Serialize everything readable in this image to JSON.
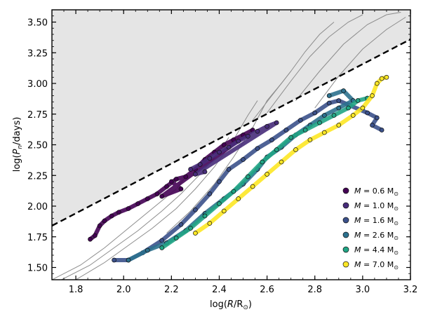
{
  "chart_data": {
    "type": "scatter",
    "title": "",
    "xlabel_parts": [
      "log(",
      "R",
      "/R",
      "⊙",
      ")"
    ],
    "ylabel_parts": [
      "log(",
      "P",
      "n",
      "/days)"
    ],
    "xlim": [
      1.7,
      3.2
    ],
    "ylim": [
      1.4,
      3.6
    ],
    "x_ticks": [
      1.8,
      2.0,
      2.2,
      2.4,
      2.6,
      2.8,
      3.0,
      3.2
    ],
    "x_tick_labels": [
      "1.8",
      "2.0",
      "2.2",
      "2.4",
      "2.6",
      "2.8",
      "3.0",
      "3.2"
    ],
    "y_ticks": [
      1.5,
      1.75,
      2.0,
      2.25,
      2.5,
      2.75,
      3.0,
      3.25,
      3.5
    ],
    "y_tick_labels": [
      "1.50",
      "1.75",
      "2.00",
      "2.25",
      "2.50",
      "2.75",
      "3.00",
      "3.25",
      "3.50"
    ],
    "grid": false,
    "legend_position": "lower-right",
    "boundary_line": {
      "points": [
        [
          1.7,
          1.84
        ],
        [
          3.2,
          3.36
        ]
      ],
      "style": "dashed",
      "color": "#000000"
    },
    "shaded_region": {
      "color": "#e5e5e5",
      "location": "above boundary line"
    },
    "series": [
      {
        "name": "M = 0.6 M⊙",
        "label_prefix": "M",
        "label_value": " = 0.6 M",
        "label_sub": "⊙",
        "color": "#440154",
        "points": [
          [
            1.86,
            1.73
          ],
          [
            1.88,
            1.76
          ],
          [
            1.9,
            1.84
          ],
          [
            1.92,
            1.88
          ],
          [
            1.95,
            1.92
          ],
          [
            1.98,
            1.95
          ],
          [
            2.02,
            1.98
          ],
          [
            2.06,
            2.02
          ],
          [
            2.1,
            2.06
          ],
          [
            2.14,
            2.1
          ],
          [
            2.18,
            2.16
          ],
          [
            2.22,
            2.22
          ],
          [
            2.26,
            2.24
          ],
          [
            2.3,
            2.3
          ],
          [
            2.34,
            2.38
          ],
          [
            2.38,
            2.44
          ],
          [
            2.42,
            2.5
          ],
          [
            2.46,
            2.54
          ],
          [
            2.5,
            2.58
          ],
          [
            2.54,
            2.62
          ],
          [
            2.16,
            2.08
          ],
          [
            2.24,
            2.14
          ],
          [
            2.2,
            2.2
          ]
        ]
      },
      {
        "name": "M = 1.0 M⊙",
        "label_prefix": "M",
        "label_value": " = 1.0 M",
        "label_sub": "⊙",
        "color": "#472c7a",
        "points": [
          [
            2.28,
            2.3
          ],
          [
            2.32,
            2.34
          ],
          [
            2.36,
            2.39
          ],
          [
            2.4,
            2.44
          ],
          [
            2.44,
            2.48
          ],
          [
            2.48,
            2.53
          ],
          [
            2.52,
            2.57
          ],
          [
            2.56,
            2.61
          ],
          [
            2.6,
            2.65
          ],
          [
            2.64,
            2.68
          ],
          [
            2.3,
            2.26
          ],
          [
            2.34,
            2.28
          ]
        ]
      },
      {
        "name": "M = 1.6 M⊙",
        "label_prefix": "M",
        "label_value": " = 1.6 M",
        "label_sub": "⊙",
        "color": "#3b518b",
        "points": [
          [
            1.96,
            1.56
          ],
          [
            2.02,
            1.56
          ],
          [
            2.08,
            1.62
          ],
          [
            2.16,
            1.72
          ],
          [
            2.24,
            1.85
          ],
          [
            2.3,
            1.97
          ],
          [
            2.36,
            2.1
          ],
          [
            2.4,
            2.2
          ],
          [
            2.44,
            2.3
          ],
          [
            2.5,
            2.38
          ],
          [
            2.56,
            2.47
          ],
          [
            2.62,
            2.54
          ],
          [
            2.68,
            2.62
          ],
          [
            2.74,
            2.7
          ],
          [
            2.8,
            2.76
          ],
          [
            2.86,
            2.84
          ],
          [
            2.9,
            2.86
          ],
          [
            3.02,
            2.76
          ],
          [
            3.06,
            2.72
          ],
          [
            3.04,
            2.66
          ],
          [
            3.08,
            2.62
          ]
        ]
      },
      {
        "name": "M = 2.6 M⊙",
        "label_prefix": "M",
        "label_value": " = 2.6 M",
        "label_sub": "⊙",
        "color": "#2c718e",
        "points": [
          [
            2.02,
            1.56
          ],
          [
            2.1,
            1.64
          ],
          [
            2.18,
            1.7
          ],
          [
            2.26,
            1.8
          ],
          [
            2.34,
            1.94
          ],
          [
            2.42,
            2.06
          ],
          [
            2.5,
            2.18
          ],
          [
            2.56,
            2.3
          ],
          [
            2.6,
            2.4
          ],
          [
            2.66,
            2.48
          ],
          [
            2.72,
            2.58
          ],
          [
            2.78,
            2.66
          ],
          [
            2.84,
            2.74
          ],
          [
            2.9,
            2.8
          ],
          [
            2.96,
            2.86
          ],
          [
            2.92,
            2.94
          ],
          [
            2.86,
            2.9
          ]
        ]
      },
      {
        "name": "M = 4.4 M⊙",
        "label_prefix": "M",
        "label_value": " = 4.4 M",
        "label_sub": "⊙",
        "color": "#21a585",
        "points": [
          [
            2.16,
            1.66
          ],
          [
            2.22,
            1.74
          ],
          [
            2.28,
            1.82
          ],
          [
            2.34,
            1.92
          ],
          [
            2.4,
            2.02
          ],
          [
            2.46,
            2.12
          ],
          [
            2.52,
            2.24
          ],
          [
            2.58,
            2.36
          ],
          [
            2.64,
            2.46
          ],
          [
            2.7,
            2.56
          ],
          [
            2.76,
            2.62
          ],
          [
            2.82,
            2.68
          ],
          [
            2.88,
            2.74
          ],
          [
            2.94,
            2.8
          ],
          [
            2.98,
            2.86
          ],
          [
            3.02,
            2.88
          ]
        ]
      },
      {
        "name": "M = 7.0 M⊙",
        "label_prefix": "M",
        "label_value": " = 7.0 M",
        "label_sub": "⊙",
        "color": "#fde725",
        "points": [
          [
            2.3,
            1.78
          ],
          [
            2.36,
            1.86
          ],
          [
            2.42,
            1.96
          ],
          [
            2.48,
            2.06
          ],
          [
            2.54,
            2.16
          ],
          [
            2.6,
            2.26
          ],
          [
            2.66,
            2.36
          ],
          [
            2.72,
            2.46
          ],
          [
            2.78,
            2.54
          ],
          [
            2.84,
            2.6
          ],
          [
            2.9,
            2.66
          ],
          [
            2.96,
            2.74
          ],
          [
            3.0,
            2.8
          ],
          [
            3.04,
            2.9
          ],
          [
            3.06,
            3.0
          ],
          [
            3.08,
            3.04
          ],
          [
            3.1,
            3.05
          ]
        ]
      }
    ],
    "gray_tracks": [
      [
        [
          1.7,
          1.4
        ],
        [
          1.82,
          1.52
        ],
        [
          1.92,
          1.66
        ],
        [
          2.02,
          1.82
        ],
        [
          2.12,
          1.98
        ],
        [
          2.22,
          2.14
        ],
        [
          2.26,
          2.24
        ]
      ],
      [
        [
          1.74,
          1.4
        ],
        [
          1.86,
          1.52
        ],
        [
          1.96,
          1.66
        ],
        [
          2.06,
          1.8
        ],
        [
          2.16,
          1.96
        ],
        [
          2.24,
          2.1
        ],
        [
          2.32,
          2.26
        ],
        [
          2.4,
          2.44
        ],
        [
          2.44,
          2.56
        ]
      ],
      [
        [
          1.8,
          1.4
        ],
        [
          1.92,
          1.54
        ],
        [
          2.02,
          1.68
        ],
        [
          2.12,
          1.82
        ],
        [
          2.22,
          1.98
        ],
        [
          2.3,
          2.14
        ],
        [
          2.38,
          2.32
        ],
        [
          2.46,
          2.54
        ],
        [
          2.52,
          2.74
        ],
        [
          2.56,
          2.86
        ]
      ],
      [
        [
          2.18,
          1.78
        ],
        [
          2.28,
          1.96
        ],
        [
          2.38,
          2.18
        ],
        [
          2.46,
          2.4
        ],
        [
          2.54,
          2.64
        ],
        [
          2.6,
          2.86
        ],
        [
          2.66,
          3.0
        ],
        [
          2.7,
          3.1
        ]
      ],
      [
        [
          2.54,
          2.7
        ],
        [
          2.62,
          2.9
        ],
        [
          2.7,
          3.1
        ],
        [
          2.76,
          3.26
        ],
        [
          2.82,
          3.4
        ],
        [
          2.88,
          3.5
        ]
      ],
      [
        [
          2.6,
          2.76
        ],
        [
          2.7,
          3.02
        ],
        [
          2.78,
          3.22
        ],
        [
          2.86,
          3.38
        ],
        [
          2.94,
          3.5
        ],
        [
          3.0,
          3.56
        ]
      ],
      [
        [
          2.72,
          2.86
        ],
        [
          2.82,
          3.1
        ],
        [
          2.92,
          3.32
        ],
        [
          3.02,
          3.48
        ],
        [
          3.1,
          3.56
        ],
        [
          3.16,
          3.58
        ]
      ],
      [
        [
          2.8,
          2.8
        ],
        [
          2.9,
          3.06
        ],
        [
          3.0,
          3.28
        ],
        [
          3.1,
          3.44
        ],
        [
          3.18,
          3.54
        ]
      ]
    ]
  }
}
